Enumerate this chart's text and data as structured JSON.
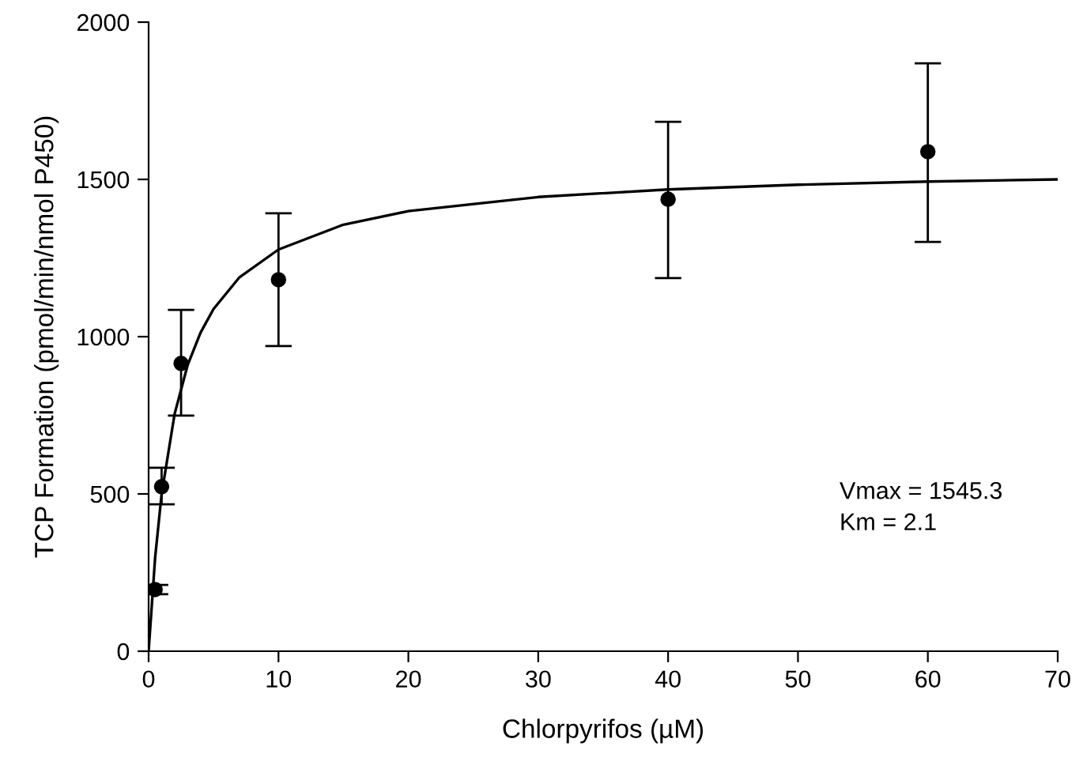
{
  "chart_data": {
    "type": "scatter",
    "xlabel": "Chlorpyrifos (µM)",
    "ylabel": "TCP Formation (pmol/min/nmol P450)",
    "xlim": [
      0,
      70
    ],
    "xticks": [
      0,
      10,
      20,
      30,
      40,
      50,
      60,
      70
    ],
    "ylim": [
      0,
      2000
    ],
    "yticks": [
      0,
      500,
      1000,
      1500,
      2000
    ],
    "grid": false,
    "annotations": [
      "Vmax = 1545.3\nKm = 2.1"
    ],
    "series": [
      {
        "color": "#000000",
        "marker": "circle",
        "x": [
          0.5,
          1,
          2.5,
          10,
          40,
          60
        ],
        "values": [
          196,
          523,
          915,
          1181,
          1437,
          1588
        ],
        "errors": [
          [
            181,
            211
          ],
          [
            467,
            583
          ],
          [
            749,
            1085
          ],
          [
            970,
            1392
          ],
          [
            1186,
            1683
          ],
          [
            1301,
            1869
          ]
        ]
      },
      {
        "type": "line",
        "color": "#000000",
        "marker": "none",
        "line_style": "solid",
        "x": [
          0,
          0.5,
          1,
          2,
          3,
          4,
          5,
          7,
          10,
          15,
          20,
          30,
          40,
          50,
          60,
          70
        ],
        "values": [
          0,
          297,
          499,
          754,
          909,
          1013,
          1088,
          1189,
          1277,
          1356,
          1399,
          1444,
          1468,
          1483,
          1493,
          1500
        ]
      }
    ]
  }
}
